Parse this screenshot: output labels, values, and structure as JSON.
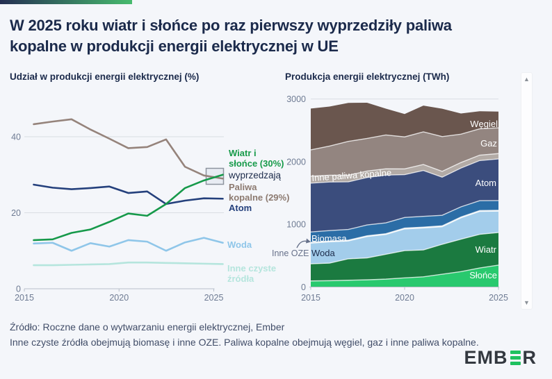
{
  "title": "W 2025 roku wiatr i słońce po raz pierwszy wyprzedziły paliwa kopalne w produkcji energii elektrycznej w UE",
  "colors": {
    "background": "#f4f6fa",
    "title_text": "#1b2a4b",
    "tick_text": "#6e7b93",
    "gridline": "#d9dde3",
    "axis_line": "#b7bec9",
    "accent_gradient_from": "#242e52",
    "accent_gradient_to": "#47bb6e",
    "annotation_box_border": "#8d939e",
    "annotation_box_fill": "#dfe6ef",
    "logo_text": "#33383f",
    "logo_green": "#1fc15f",
    "footer_text": "#414d68"
  },
  "left_chart": {
    "subtitle": "Udział w produkcji energii elektrycznej (%)",
    "labels": {
      "wind_solar_line1": "Wiatr i",
      "wind_solar_line2": "słońce (30%)",
      "overtake": "wyprzedzają",
      "fossil_line1": "Paliwa",
      "fossil_line2": "kopalne (29%)",
      "atom": "Atom",
      "woda": "Woda",
      "other_clean_line1": "Inne czyste",
      "other_clean_line2": "źródła"
    }
  },
  "right_chart": {
    "subtitle": "Produkcja energii elektrycznej (TWh)",
    "labels": {
      "wegiel": "Węgiel",
      "gaz": "Gaz",
      "inne_paliwa": "Inne paliwa kopalne",
      "atom": "Atom",
      "biomasa": "Biomasa",
      "woda": "Woda",
      "wiatr": "Wiatr",
      "slonce": "Słońce",
      "inne_oze": "Inne OZE"
    }
  },
  "chart_data": [
    {
      "type": "line",
      "title": "Udział w produkcji energii elektrycznej (%)",
      "x": [
        2015,
        2016,
        2017,
        2018,
        2019,
        2020,
        2021,
        2022,
        2023,
        2024,
        2025
      ],
      "xticks": [
        2015,
        2020,
        2025
      ],
      "yticks": [
        0,
        20,
        40
      ],
      "ylim": [
        0,
        47
      ],
      "series": [
        {
          "name": "Paliwa kopalne",
          "color": "#95837b",
          "values": [
            43.3,
            44.0,
            44.6,
            41.9,
            39.5,
            37.0,
            37.3,
            39.3,
            32.1,
            29.8,
            29.0
          ]
        },
        {
          "name": "Atom",
          "color": "#24407c",
          "values": [
            27.4,
            26.6,
            26.2,
            26.5,
            26.9,
            25.2,
            25.6,
            22.3,
            23.2,
            23.8,
            23.7
          ]
        },
        {
          "name": "Woda",
          "color": "#8fc6e9",
          "values": [
            11.9,
            12.1,
            10.0,
            12.0,
            11.1,
            12.8,
            12.4,
            10.0,
            12.2,
            13.4,
            12.1
          ]
        },
        {
          "name": "Inne czyste źródła",
          "color": "#b5e5dd",
          "values": [
            6.2,
            6.2,
            6.3,
            6.4,
            6.5,
            6.9,
            6.9,
            6.8,
            6.7,
            6.6,
            6.5
          ]
        },
        {
          "name": "Wiatr i słońce",
          "color": "#16994a",
          "values": [
            12.8,
            13.0,
            14.7,
            15.6,
            17.6,
            19.8,
            19.2,
            22.3,
            26.5,
            28.5,
            30.0
          ]
        }
      ],
      "annotation": {
        "text": "wyprzedzają",
        "box_years": [
          2024,
          2025
        ]
      }
    },
    {
      "type": "area",
      "title": "Produkcja energii elektrycznej (TWh)",
      "x": [
        2015,
        2016,
        2017,
        2018,
        2019,
        2020,
        2021,
        2022,
        2023,
        2024,
        2025
      ],
      "xticks": [
        2015,
        2020,
        2025
      ],
      "yticks": [
        0,
        1000,
        2000,
        3000
      ],
      "ylim": [
        0,
        3100
      ],
      "series": [
        {
          "name": "Słońce",
          "color": "#29c96e",
          "values": [
            97,
            101,
            108,
            115,
            126,
            146,
            163,
            204,
            246,
            304,
            350
          ]
        },
        {
          "name": "Wiatr",
          "color": "#1b7a40",
          "values": [
            273,
            280,
            342,
            350,
            397,
            435,
            429,
            478,
            517,
            537,
            520
          ]
        },
        {
          "name": "Woda",
          "color": "#a3cdeb",
          "values": [
            330,
            340,
            285,
            340,
            315,
            345,
            350,
            280,
            340,
            365,
            340
          ]
        },
        {
          "name": "Inne OZE",
          "color": "#e9efed",
          "values": [
            13,
            13,
            13,
            13,
            13,
            14,
            14,
            14,
            14,
            14,
            14
          ]
        },
        {
          "name": "Biomasa",
          "color": "#2b6da6",
          "values": [
            165,
            167,
            170,
            172,
            173,
            170,
            172,
            168,
            162,
            158,
            155
          ]
        },
        {
          "name": "Atom",
          "color": "#3b4d7d",
          "values": [
            780,
            775,
            760,
            758,
            762,
            683,
            732,
            609,
            619,
            640,
            665
          ]
        },
        {
          "name": "Inne paliwa kopalne",
          "color": "#b3aba6",
          "values": [
            110,
            108,
            105,
            102,
            100,
            92,
            95,
            92,
            88,
            86,
            85
          ]
        },
        {
          "name": "Gaz",
          "color": "#938580",
          "values": [
            420,
            465,
            540,
            520,
            540,
            510,
            520,
            555,
            452,
            420,
            410
          ]
        },
        {
          "name": "Węgiel",
          "color": "#6a564e",
          "values": [
            660,
            630,
            615,
            570,
            420,
            365,
            420,
            445,
            330,
            280,
            260
          ]
        }
      ]
    }
  ],
  "footer": {
    "line1": "Źródło: Roczne dane o wytwarzaniu energii elektrycznej, Ember",
    "line2": "Inne czyste źródła obejmują biomasę i inne OZE. Paliwa kopalne obejmują węgiel, gaz i inne paliwa kopalne."
  },
  "logo": {
    "left": "EMB",
    "right": "R"
  },
  "icons": {
    "scroll_up": "▲",
    "scroll_down": "▼"
  }
}
